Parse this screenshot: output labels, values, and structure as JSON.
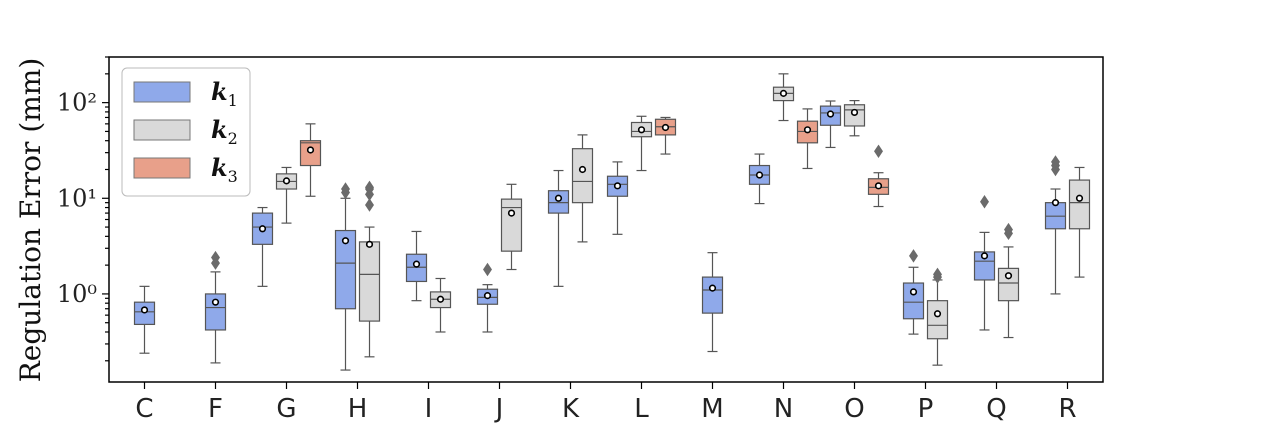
{
  "chart_data": {
    "type": "box",
    "title": "",
    "xlabel": "",
    "ylabel": "Regulation Error (mm)",
    "yscale": "log",
    "ylim": [
      0.12,
      300
    ],
    "yticks": [
      {
        "value": 1,
        "label": "10⁰"
      },
      {
        "value": 10,
        "label": "10¹"
      },
      {
        "value": 100,
        "label": "10²"
      }
    ],
    "categories": [
      "C",
      "F",
      "G",
      "H",
      "I",
      "J",
      "K",
      "L",
      "M",
      "N",
      "O",
      "P",
      "Q",
      "R"
    ],
    "legend": {
      "position": "top-left",
      "entries": [
        {
          "key": "k1",
          "base": "k",
          "sub": "1",
          "color": "#8fa9ea"
        },
        {
          "key": "k2",
          "base": "k",
          "sub": "2",
          "color": "#d9d9d9"
        },
        {
          "key": "k3",
          "base": "k",
          "sub": "3",
          "color": "#e8a08a"
        }
      ]
    },
    "boxes": [
      {
        "category": "C",
        "series": "k1",
        "whislo": 0.24,
        "q1": 0.48,
        "median": 0.65,
        "q3": 0.82,
        "whishi": 1.2,
        "mean": 0.68,
        "fliers": []
      },
      {
        "category": "F",
        "series": "k1",
        "whislo": 0.19,
        "q1": 0.42,
        "median": 0.72,
        "q3": 1.0,
        "whishi": 1.7,
        "mean": 0.82,
        "fliers": [
          2.1,
          2.4
        ]
      },
      {
        "category": "G",
        "series": "k1",
        "whislo": 1.2,
        "q1": 3.3,
        "median": 5.0,
        "q3": 7.0,
        "whishi": 8.0,
        "mean": 4.8,
        "fliers": []
      },
      {
        "category": "G",
        "series": "k2",
        "whislo": 5.5,
        "q1": 12.5,
        "median": 15.0,
        "q3": 18.0,
        "whishi": 21.0,
        "mean": 15.2,
        "fliers": []
      },
      {
        "category": "G",
        "series": "k3",
        "whislo": 10.5,
        "q1": 22.0,
        "median": 38.0,
        "q3": 40.0,
        "whishi": 60.0,
        "mean": 32.0,
        "fliers": []
      },
      {
        "category": "H",
        "series": "k1",
        "whislo": 0.16,
        "q1": 0.7,
        "median": 2.1,
        "q3": 4.6,
        "whishi": 10.0,
        "mean": 3.6,
        "fliers": [
          11.5,
          12.5
        ]
      },
      {
        "category": "H",
        "series": "k2",
        "whislo": 0.22,
        "q1": 0.52,
        "median": 1.6,
        "q3": 3.5,
        "whishi": 5.0,
        "mean": 3.3,
        "fliers": [
          8.5,
          11.0,
          12.5,
          13.0
        ]
      },
      {
        "category": "I",
        "series": "k1",
        "whislo": 0.85,
        "q1": 1.35,
        "median": 1.9,
        "q3": 2.6,
        "whishi": 4.5,
        "mean": 2.05,
        "fliers": []
      },
      {
        "category": "I",
        "series": "k2",
        "whislo": 0.4,
        "q1": 0.72,
        "median": 0.88,
        "q3": 1.05,
        "whishi": 1.45,
        "mean": 0.88,
        "fliers": []
      },
      {
        "category": "J",
        "series": "k1",
        "whislo": 0.4,
        "q1": 0.78,
        "median": 0.92,
        "q3": 1.12,
        "whishi": 1.25,
        "mean": 0.96,
        "fliers": [
          1.8
        ]
      },
      {
        "category": "J",
        "series": "k2",
        "whislo": 1.8,
        "q1": 2.8,
        "median": 8.0,
        "q3": 9.8,
        "whishi": 14.0,
        "mean": 7.0,
        "fliers": []
      },
      {
        "category": "K",
        "series": "k1",
        "whislo": 1.2,
        "q1": 7.0,
        "median": 9.0,
        "q3": 12.0,
        "whishi": 19.5,
        "mean": 10.0,
        "fliers": []
      },
      {
        "category": "K",
        "series": "k2",
        "whislo": 3.5,
        "q1": 9.0,
        "median": 15.0,
        "q3": 33.0,
        "whishi": 46.0,
        "mean": 20.0,
        "fliers": []
      },
      {
        "category": "L",
        "series": "k1",
        "whislo": 4.2,
        "q1": 10.5,
        "median": 14.0,
        "q3": 17.0,
        "whishi": 24.0,
        "mean": 13.5,
        "fliers": []
      },
      {
        "category": "L",
        "series": "k2",
        "whislo": 19.5,
        "q1": 44.0,
        "median": 50.0,
        "q3": 62.0,
        "whishi": 72.0,
        "mean": 52.0,
        "fliers": []
      },
      {
        "category": "L",
        "series": "k3",
        "whislo": 29.0,
        "q1": 46.0,
        "median": 56.0,
        "q3": 67.0,
        "whishi": 70.0,
        "mean": 55.0,
        "fliers": []
      },
      {
        "category": "M",
        "series": "k1",
        "whislo": 0.25,
        "q1": 0.63,
        "median": 1.1,
        "q3": 1.5,
        "whishi": 2.7,
        "mean": 1.15,
        "fliers": []
      },
      {
        "category": "N",
        "series": "k1",
        "whislo": 8.8,
        "q1": 14.0,
        "median": 17.5,
        "q3": 22.0,
        "whishi": 29.0,
        "mean": 17.5,
        "fliers": []
      },
      {
        "category": "N",
        "series": "k2",
        "whislo": 65.0,
        "q1": 105.0,
        "median": 125.0,
        "q3": 145.0,
        "whishi": 200.0,
        "mean": 125.0,
        "fliers": []
      },
      {
        "category": "N",
        "series": "k3",
        "whislo": 20.5,
        "q1": 38.0,
        "median": 50.0,
        "q3": 64.0,
        "whishi": 86.0,
        "mean": 52.0,
        "fliers": []
      },
      {
        "category": "O",
        "series": "k1",
        "whislo": 34.0,
        "q1": 58.0,
        "median": 78.0,
        "q3": 92.0,
        "whishi": 104.0,
        "mean": 76.0,
        "fliers": []
      },
      {
        "category": "O",
        "series": "k2",
        "whislo": 45.0,
        "q1": 57.0,
        "median": 84.0,
        "q3": 95.0,
        "whishi": 105.0,
        "mean": 79.0,
        "fliers": []
      },
      {
        "category": "O",
        "series": "k3",
        "whislo": 8.2,
        "q1": 11.0,
        "median": 13.0,
        "q3": 16.0,
        "whishi": 18.5,
        "mean": 13.5,
        "fliers": [
          31.0
        ]
      },
      {
        "category": "P",
        "series": "k1",
        "whislo": 0.38,
        "q1": 0.55,
        "median": 0.82,
        "q3": 1.3,
        "whishi": 1.9,
        "mean": 1.05,
        "fliers": [
          2.5
        ]
      },
      {
        "category": "P",
        "series": "k2",
        "whislo": 0.18,
        "q1": 0.34,
        "median": 0.47,
        "q3": 0.85,
        "whishi": 1.4,
        "mean": 0.62,
        "fliers": [
          1.5,
          1.6
        ]
      },
      {
        "category": "Q",
        "series": "k1",
        "whislo": 0.42,
        "q1": 1.4,
        "median": 2.2,
        "q3": 2.75,
        "whishi": 4.4,
        "mean": 2.5,
        "fliers": [
          9.2
        ]
      },
      {
        "category": "Q",
        "series": "k2",
        "whislo": 0.35,
        "q1": 0.85,
        "median": 1.3,
        "q3": 1.85,
        "whishi": 3.1,
        "mean": 1.55,
        "fliers": [
          4.3,
          4.7
        ]
      },
      {
        "category": "R",
        "series": "k1",
        "whislo": 1.0,
        "q1": 4.8,
        "median": 6.5,
        "q3": 9.0,
        "whishi": 12.5,
        "mean": 9.0,
        "fliers": [
          20.0,
          22.0,
          24.0
        ]
      },
      {
        "category": "R",
        "series": "k2",
        "whislo": 1.5,
        "q1": 4.8,
        "median": 9.0,
        "q3": 15.5,
        "whishi": 21.0,
        "mean": 10.0,
        "fliers": []
      }
    ]
  }
}
